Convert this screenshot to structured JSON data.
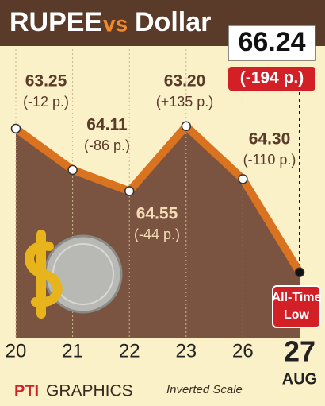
{
  "chart_data": {
    "type": "line",
    "title_parts": [
      "RUPEE",
      "vs",
      "Dollar"
    ],
    "categories": [
      "20",
      "21",
      "22",
      "23",
      "26",
      "27"
    ],
    "x_label": "AUG",
    "values": [
      63.25,
      64.11,
      64.55,
      63.2,
      64.3,
      66.24
    ],
    "value_labels": [
      "63.25",
      "64.11",
      "64.55",
      "63.20",
      "64.30",
      "66.24"
    ],
    "change_labels": [
      "(-12 p.)",
      "(-86 p.)",
      "(-44 p.)",
      "(+135 p.)",
      "(-110 p.)",
      "(-194 p.)"
    ],
    "color": "#d9731f",
    "ylim": [
      61.6,
      67.6
    ],
    "inverted": true,
    "annotation_lines": [
      "All-Time",
      "Low"
    ],
    "source_parts": [
      "PTI",
      "GRAPHICS"
    ],
    "note": "Inverted Scale"
  }
}
